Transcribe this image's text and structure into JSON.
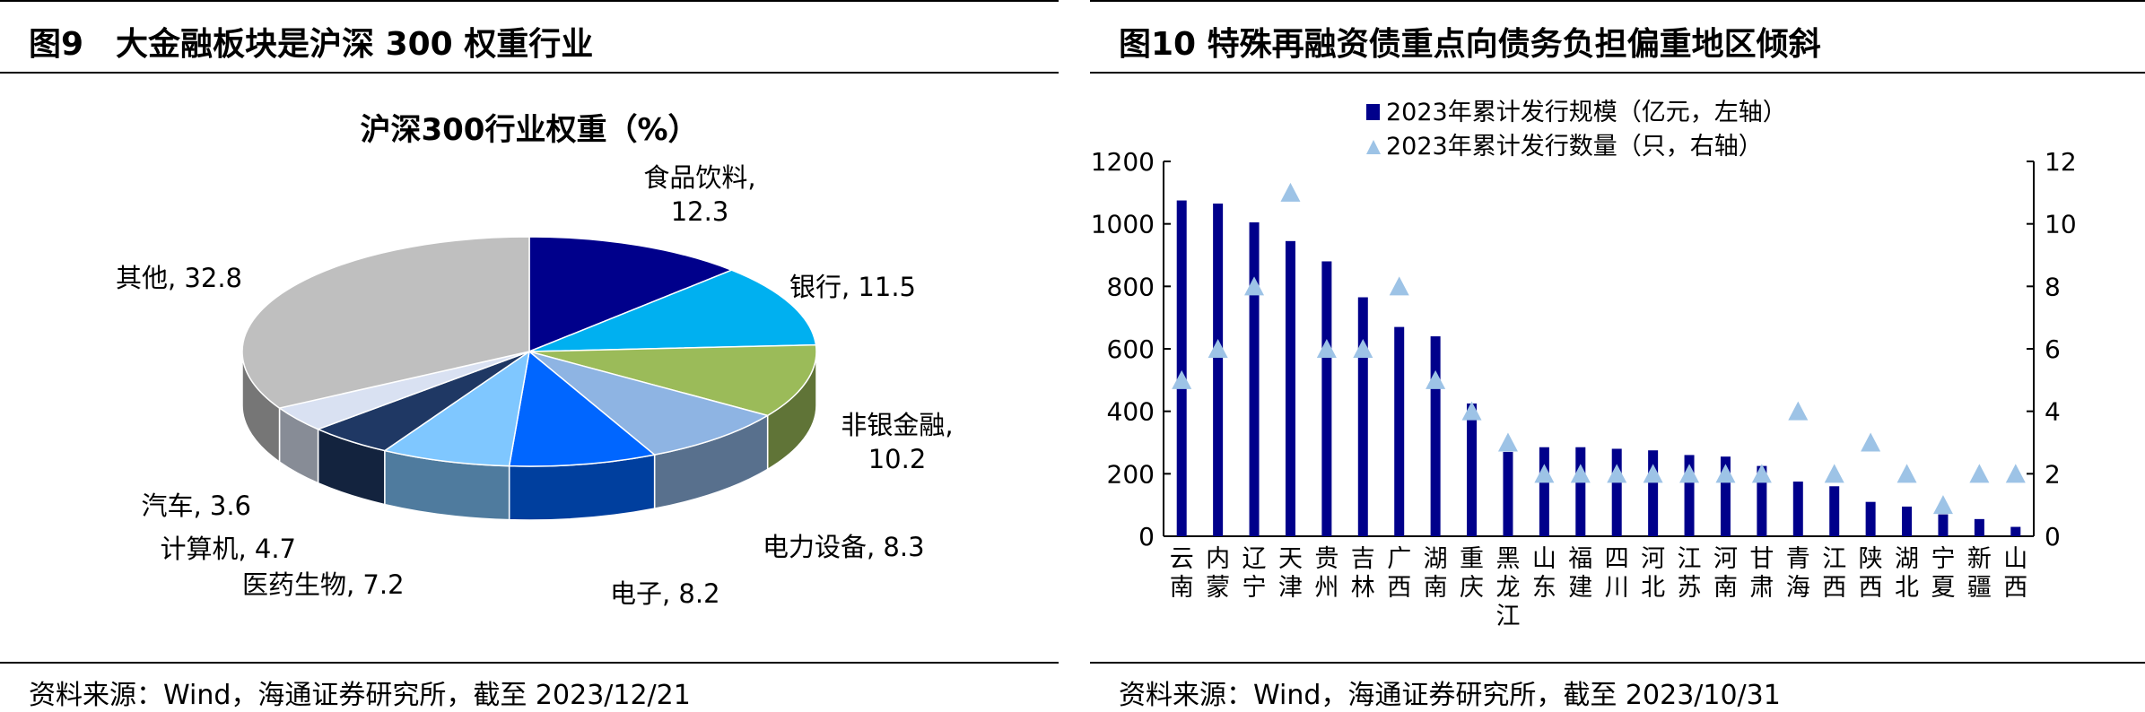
{
  "left": {
    "figure_title": "图9　大金融板块是沪深 300 权重行业",
    "source": "资料来源：Wind，海通证券研究所，截至 2023/12/21"
  },
  "right": {
    "figure_title": "图10 特殊再融资债重点向债务负担偏重地区倾斜",
    "source": "资料来源：Wind，海通证券研究所，截至 2023/10/31"
  },
  "chart_data": [
    {
      "type": "pie",
      "title": "沪深300行业权重（%）",
      "categories": [
        "食品饮料",
        "银行",
        "非银金融",
        "电力设备",
        "电子",
        "医药生物",
        "计算机",
        "汽车",
        "其他"
      ],
      "values": [
        12.3,
        11.5,
        10.2,
        8.3,
        8.2,
        7.2,
        4.7,
        3.6,
        32.8
      ],
      "labels": [
        "食品饮料,\n12.3",
        "银行, 11.5",
        "非银金融,\n10.2",
        "电力设备, 8.3",
        "电子, 8.2",
        "医药生物, 7.2",
        "计算机, 4.7",
        "汽车, 3.6",
        "其他, 32.8"
      ],
      "colors": [
        "#00008B",
        "#00B0F0",
        "#9BBB59",
        "#8EB4E3",
        "#0066FF",
        "#7FC7FF",
        "#1F3864",
        "#D9E1F2",
        "#BFBFBF"
      ],
      "style": "3d"
    },
    {
      "type": "bar",
      "categories": [
        "云南",
        "内蒙",
        "辽宁",
        "天津",
        "贵州",
        "吉林",
        "广西",
        "湖南",
        "重庆",
        "黑龙江",
        "山东",
        "福建",
        "四川",
        "河北",
        "江苏",
        "河南",
        "甘肃",
        "青海",
        "江西",
        "陕西",
        "湖北",
        "宁夏",
        "新疆",
        "山西"
      ],
      "series": [
        {
          "name": "2023年累计发行规模（亿元，左轴）",
          "type": "bar",
          "axis": "left",
          "color": "#00008B",
          "values": [
            1075,
            1065,
            1005,
            945,
            880,
            765,
            670,
            640,
            425,
            270,
            285,
            285,
            280,
            275,
            260,
            255,
            225,
            175,
            160,
            110,
            95,
            70,
            55,
            30
          ]
        },
        {
          "name": "2023年累计发行数量（只，右轴）",
          "type": "scatter",
          "axis": "right",
          "color": "#9DC3E6",
          "values": [
            5,
            6,
            8,
            11,
            6,
            6,
            8,
            5,
            4,
            3,
            2,
            2,
            2,
            2,
            2,
            2,
            2,
            4,
            2,
            3,
            2,
            1,
            2,
            2
          ]
        }
      ],
      "y_left": {
        "ylim": [
          0,
          1200
        ],
        "ticks": [
          "0",
          "200",
          "400",
          "600",
          "800",
          "1000",
          "1200"
        ]
      },
      "y_right": {
        "ylim": [
          0,
          12
        ],
        "ticks": [
          "0",
          "2",
          "4",
          "6",
          "8",
          "10",
          "12"
        ]
      },
      "legend": "top"
    }
  ]
}
